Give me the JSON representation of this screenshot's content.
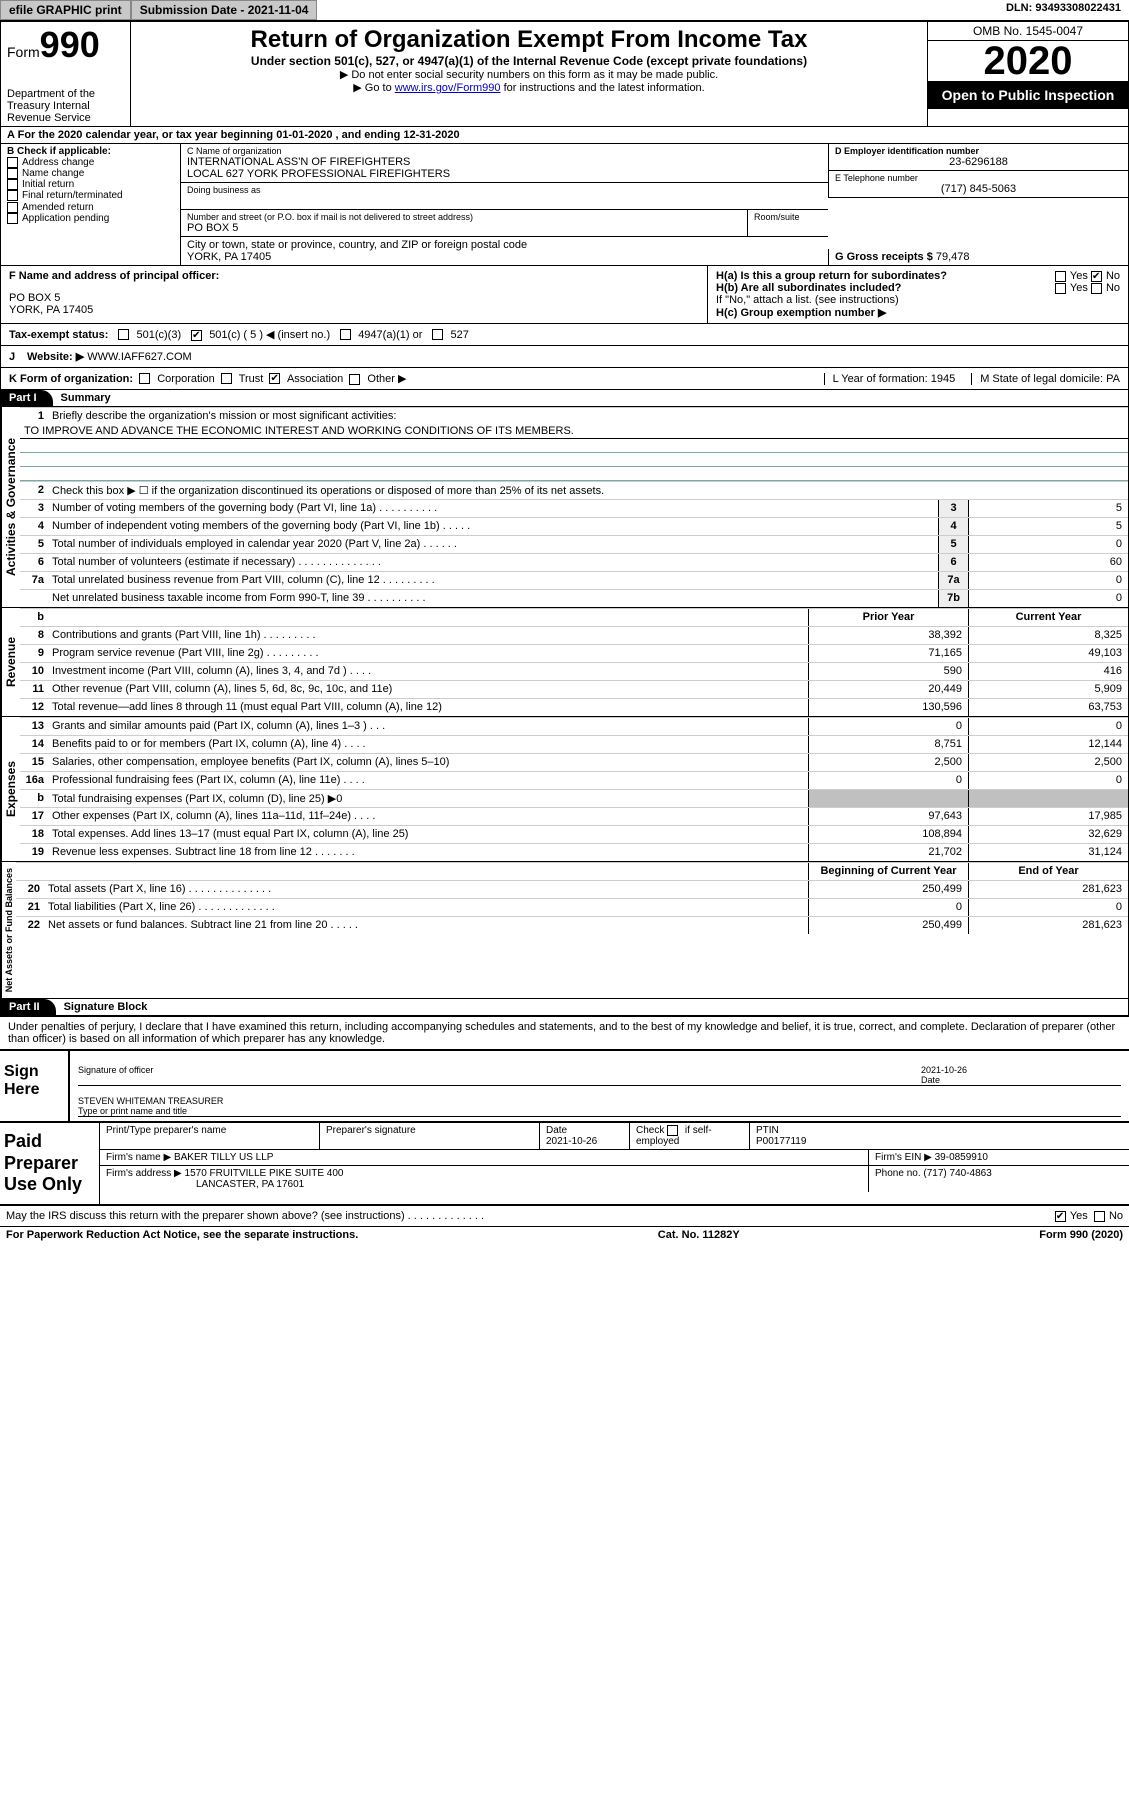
{
  "topbar": {
    "efile": "efile GRAPHIC print",
    "submission_label": "Submission Date - 2021-11-04",
    "dln": "DLN: 93493308022431"
  },
  "header": {
    "form_label": "Form",
    "form_number": "990",
    "dept": "Department of the Treasury\nInternal Revenue Service",
    "title": "Return of Organization Exempt From Income Tax",
    "sub1": "Under section 501(c), 527, or 4947(a)(1) of the Internal Revenue Code (except private foundations)",
    "sub2": "Do not enter social security numbers on this form as it may be made public.",
    "sub3_pre": "Go to ",
    "sub3_link": "www.irs.gov/Form990",
    "sub3_post": " for instructions and the latest information.",
    "omb": "OMB No. 1545-0047",
    "year": "2020",
    "open": "Open to Public Inspection"
  },
  "rowA": "For the 2020 calendar year, or tax year beginning 01-01-2020    , and ending 12-31-2020",
  "boxB": {
    "label": "B Check if applicable:",
    "items": [
      "Address change",
      "Name change",
      "Initial return",
      "Final return/terminated",
      "Amended return",
      "Application pending"
    ]
  },
  "boxC": {
    "name_label": "C Name of organization",
    "name": "INTERNATIONAL ASS'N OF FIREFIGHTERS\nLOCAL 627 YORK PROFESSIONAL FIREFIGHTERS",
    "dba_label": "Doing business as",
    "addr_label": "Number and street (or P.O. box if mail is not delivered to street address)",
    "room_label": "Room/suite",
    "addr": "PO BOX 5",
    "city_label": "City or town, state or province, country, and ZIP or foreign postal code",
    "city": "YORK, PA  17405"
  },
  "boxD": {
    "label": "D Employer identification number",
    "val": "23-6296188"
  },
  "boxE": {
    "label": "E Telephone number",
    "val": "(717) 845-5063"
  },
  "boxG": {
    "label": "G Gross receipts $",
    "val": "79,478"
  },
  "boxF": {
    "label": "F  Name and address of principal officer:",
    "addr1": "PO BOX 5",
    "addr2": "YORK, PA  17405"
  },
  "boxH": {
    "a": "H(a)  Is this a group return for subordinates?",
    "b": "H(b)  Are all subordinates included?",
    "b_note": "If \"No,\" attach a list. (see instructions)",
    "c": "H(c)  Group exemption number ▶",
    "yes": "Yes",
    "no": "No"
  },
  "taxRow": {
    "label": "Tax-exempt status:",
    "c3": "501(c)(3)",
    "c5": "501(c) ( 5 ) ◀ (insert no.)",
    "a1": "4947(a)(1) or",
    "s527": "527"
  },
  "rowJ": {
    "label": "J",
    "text": "Website: ▶",
    "val": "WWW.IAFF627.COM"
  },
  "rowK": {
    "label": "K Form of organization:",
    "opts": [
      "Corporation",
      "Trust",
      "Association",
      "Other ▶"
    ],
    "L": "L Year of formation: 1945",
    "M": "M State of legal domicile: PA"
  },
  "partI": {
    "hdr": "Part I",
    "title": "Summary",
    "q1": "Briefly describe the organization's mission or most significant activities:",
    "mission": "TO IMPROVE AND ADVANCE THE ECONOMIC INTEREST AND WORKING CONDITIONS OF ITS MEMBERS.",
    "q2": "Check this box ▶ ☐  if the organization discontinued its operations or disposed of more than 25% of its net assets.",
    "lines_gov": [
      {
        "n": "3",
        "d": "Number of voting members of the governing body (Part VI, line 1a)  .  .  .  .  .  .  .  .  .  .",
        "r": "3",
        "v": "5"
      },
      {
        "n": "4",
        "d": "Number of independent voting members of the governing body (Part VI, line 1b)  .  .  .  .  .",
        "r": "4",
        "v": "5"
      },
      {
        "n": "5",
        "d": "Total number of individuals employed in calendar year 2020 (Part V, line 2a)  .  .  .  .  .  .",
        "r": "5",
        "v": "0"
      },
      {
        "n": "6",
        "d": "Total number of volunteers (estimate if necessary)  .  .  .  .  .  .  .  .  .  .  .  .  .  .",
        "r": "6",
        "v": "60"
      },
      {
        "n": "7a",
        "d": "Total unrelated business revenue from Part VIII, column (C), line 12  .  .  .  .  .  .  .  .  .",
        "r": "7a",
        "v": "0"
      },
      {
        "n": "",
        "d": "Net unrelated business taxable income from Form 990-T, line 39  .  .  .  .  .  .  .  .  .  .",
        "r": "7b",
        "v": "0"
      }
    ],
    "col_prior": "Prior Year",
    "col_current": "Current Year",
    "revenue": [
      {
        "n": "8",
        "d": "Contributions and grants (Part VIII, line 1h)  .  .  .  .  .  .  .  .  .",
        "p": "38,392",
        "c": "8,325"
      },
      {
        "n": "9",
        "d": "Program service revenue (Part VIII, line 2g)  .  .  .  .  .  .  .  .  .",
        "p": "71,165",
        "c": "49,103"
      },
      {
        "n": "10",
        "d": "Investment income (Part VIII, column (A), lines 3, 4, and 7d )  .  .  .  .",
        "p": "590",
        "c": "416"
      },
      {
        "n": "11",
        "d": "Other revenue (Part VIII, column (A), lines 5, 6d, 8c, 9c, 10c, and 11e)",
        "p": "20,449",
        "c": "5,909"
      },
      {
        "n": "12",
        "d": "Total revenue—add lines 8 through 11 (must equal Part VIII, column (A), line 12)",
        "p": "130,596",
        "c": "63,753"
      }
    ],
    "expenses": [
      {
        "n": "13",
        "d": "Grants and similar amounts paid (Part IX, column (A), lines 1–3 )  .  .  .",
        "p": "0",
        "c": "0"
      },
      {
        "n": "14",
        "d": "Benefits paid to or for members (Part IX, column (A), line 4)  .  .  .  .",
        "p": "8,751",
        "c": "12,144"
      },
      {
        "n": "15",
        "d": "Salaries, other compensation, employee benefits (Part IX, column (A), lines 5–10)",
        "p": "2,500",
        "c": "2,500"
      },
      {
        "n": "16a",
        "d": "Professional fundraising fees (Part IX, column (A), line 11e)  .  .  .  .",
        "p": "0",
        "c": "0"
      },
      {
        "n": "b",
        "d": "Total fundraising expenses (Part IX, column (D), line 25) ▶0",
        "p": "shade",
        "c": "shade"
      },
      {
        "n": "17",
        "d": "Other expenses (Part IX, column (A), lines 11a–11d, 11f–24e)  .  .  .  .",
        "p": "97,643",
        "c": "17,985"
      },
      {
        "n": "18",
        "d": "Total expenses. Add lines 13–17 (must equal Part IX, column (A), line 25)",
        "p": "108,894",
        "c": "32,629"
      },
      {
        "n": "19",
        "d": "Revenue less expenses. Subtract line 18 from line 12  .  .  .  .  .  .  .",
        "p": "21,702",
        "c": "31,124"
      }
    ],
    "net_hdr_l": "Beginning of Current Year",
    "net_hdr_r": "End of Year",
    "net": [
      {
        "n": "20",
        "d": "Total assets (Part X, line 16)  .  .  .  .  .  .  .  .  .  .  .  .  .  .",
        "p": "250,499",
        "c": "281,623"
      },
      {
        "n": "21",
        "d": "Total liabilities (Part X, line 26)  .  .  .  .  .  .  .  .  .  .  .  .  .",
        "p": "0",
        "c": "0"
      },
      {
        "n": "22",
        "d": "Net assets or fund balances. Subtract line 21 from line 20  .  .  .  .  .",
        "p": "250,499",
        "c": "281,623"
      }
    ],
    "vlabels": {
      "gov": "Activities & Governance",
      "rev": "Revenue",
      "exp": "Expenses",
      "net": "Net Assets or Fund Balances"
    }
  },
  "partII": {
    "hdr": "Part II",
    "title": "Signature Block",
    "perjury": "Under penalties of perjury, I declare that I have examined this return, including accompanying schedules and statements, and to the best of my knowledge and belief, it is true, correct, and complete. Declaration of preparer (other than officer) is based on all information of which preparer has any knowledge."
  },
  "sign": {
    "here": "Sign Here",
    "sig_label": "Signature of officer",
    "date": "2021-10-26",
    "date_label": "Date",
    "name": "STEVEN WHITEMAN  TREASURER",
    "name_label": "Type or print name and title"
  },
  "prep": {
    "title": "Paid Preparer Use Only",
    "h1": "Print/Type preparer's name",
    "h2": "Preparer's signature",
    "h3": "Date",
    "date": "2021-10-26",
    "h4_a": "Check",
    "h4_b": "if self-employed",
    "h5": "PTIN",
    "ptin": "P00177119",
    "firm_label": "Firm's name    ▶",
    "firm": "BAKER TILLY US LLP",
    "ein_label": "Firm's EIN ▶",
    "ein": "39-0859910",
    "addr_label": "Firm's address ▶",
    "addr1": "1570 FRUITVILLE PIKE SUITE 400",
    "addr2": "LANCASTER, PA  17601",
    "phone_label": "Phone no.",
    "phone": "(717) 740-4863"
  },
  "footer": {
    "q": "May the IRS discuss this return with the preparer shown above? (see instructions)  .  .  .  .  .  .  .  .  .  .  .  .  .",
    "yes": "Yes",
    "no": "No",
    "pra": "For Paperwork Reduction Act Notice, see the separate instructions.",
    "cat": "Cat. No. 11282Y",
    "form": "Form 990 (2020)"
  }
}
